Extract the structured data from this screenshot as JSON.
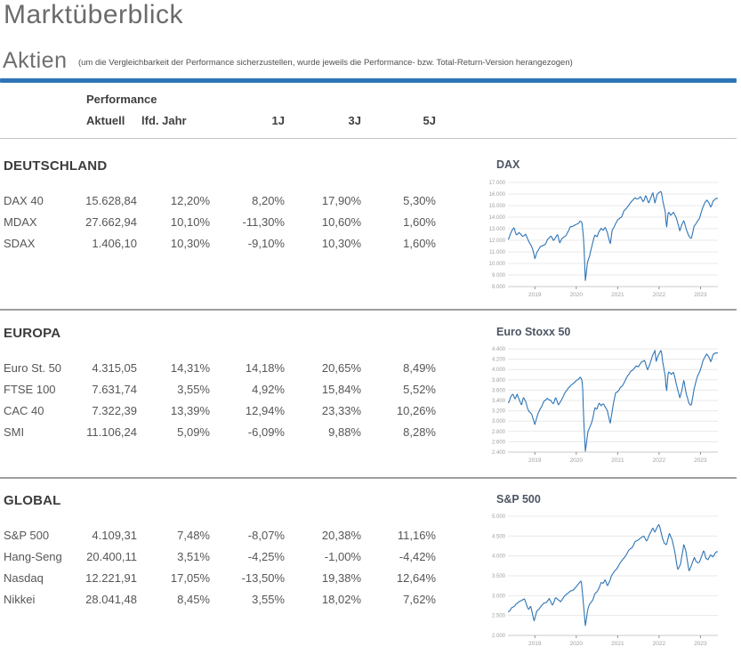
{
  "page": {
    "title": "Marktüberblick",
    "section_label": "Aktien",
    "section_note": "(um die Vergleichbarkeit der Performance sicherzustellen, wurde jeweils die Performance- bzw. Total-Return-Version herangezogen)"
  },
  "colors": {
    "accent_blue": "#2e75b6",
    "chart_line": "#2e75b6",
    "gridline": "#e8e8e8",
    "axis_label": "#a0a0a0",
    "separator": "#9e9e9e"
  },
  "table": {
    "group_header": "Performance",
    "columns": [
      "Aktuell",
      "lfd. Jahr",
      "1J",
      "3J",
      "5J"
    ],
    "sections": [
      {
        "title": "DEUTSCHLAND",
        "chart_title": "DAX",
        "rows": [
          {
            "label": "DAX 40",
            "values": [
              "15.628,84",
              "12,20%",
              "8,20%",
              "17,90%",
              "5,30%"
            ]
          },
          {
            "label": "MDAX",
            "values": [
              "27.662,94",
              "10,10%",
              "-11,30%",
              "10,60%",
              "1,60%"
            ]
          },
          {
            "label": "SDAX",
            "values": [
              "1.406,10",
              "10,30%",
              "-9,10%",
              "10,30%",
              "1,60%"
            ]
          }
        ]
      },
      {
        "title": "EUROPA",
        "chart_title": "Euro Stoxx 50",
        "rows": [
          {
            "label": "Euro St. 50",
            "values": [
              "4.315,05",
              "14,31%",
              "14,18%",
              "20,65%",
              "8,49%"
            ]
          },
          {
            "label": "FTSE 100",
            "values": [
              "7.631,74",
              "3,55%",
              "4,92%",
              "15,84%",
              "5,52%"
            ]
          },
          {
            "label": "CAC 40",
            "values": [
              "7.322,39",
              "13,39%",
              "12,94%",
              "23,33%",
              "10,26%"
            ]
          },
          {
            "label": "SMI",
            "values": [
              "11.106,24",
              "5,09%",
              "-6,09%",
              "9,88%",
              "8,28%"
            ]
          }
        ]
      },
      {
        "title": "GLOBAL",
        "chart_title": "S&P 500",
        "rows": [
          {
            "label": "S&P 500",
            "values": [
              "4.109,31",
              "7,48%",
              "-8,07%",
              "20,38%",
              "11,16%"
            ]
          },
          {
            "label": "Hang-Seng",
            "values": [
              "20.400,11",
              "3,51%",
              "-4,25%",
              "-1,00%",
              "-4,42%"
            ]
          },
          {
            "label": "Nasdaq",
            "values": [
              "12.221,91",
              "17,05%",
              "-13,50%",
              "19,38%",
              "12,64%"
            ]
          },
          {
            "label": "Nikkei",
            "values": [
              "28.041,48",
              "8,45%",
              "3,55%",
              "18,02%",
              "7,62%"
            ]
          }
        ]
      }
    ]
  },
  "chart_data": [
    {
      "type": "line",
      "title": "DAX",
      "x_ticks": [
        2019,
        2020,
        2021,
        2022,
        2023
      ],
      "xlim": [
        2018.35,
        2023.42
      ],
      "ylim": [
        8000,
        17000
      ],
      "y_step": 1000,
      "noise": 60,
      "seed": 7,
      "anchors": [
        [
          2018.37,
          12150
        ],
        [
          2018.45,
          12900
        ],
        [
          2018.5,
          13100
        ],
        [
          2018.55,
          12450
        ],
        [
          2018.62,
          12700
        ],
        [
          2018.7,
          12350
        ],
        [
          2018.78,
          12550
        ],
        [
          2018.85,
          11900
        ],
        [
          2018.95,
          11200
        ],
        [
          2019.0,
          10450
        ],
        [
          2019.05,
          11000
        ],
        [
          2019.15,
          11500
        ],
        [
          2019.25,
          11650
        ],
        [
          2019.3,
          12050
        ],
        [
          2019.4,
          12350
        ],
        [
          2019.45,
          11900
        ],
        [
          2019.55,
          12450
        ],
        [
          2019.6,
          11750
        ],
        [
          2019.65,
          12100
        ],
        [
          2019.75,
          12350
        ],
        [
          2019.85,
          13150
        ],
        [
          2019.95,
          13250
        ],
        [
          2020.05,
          13400
        ],
        [
          2020.1,
          13650
        ],
        [
          2020.14,
          13500
        ],
        [
          2020.18,
          12000
        ],
        [
          2020.22,
          8450
        ],
        [
          2020.27,
          10000
        ],
        [
          2020.32,
          10600
        ],
        [
          2020.4,
          11800
        ],
        [
          2020.45,
          12500
        ],
        [
          2020.5,
          12300
        ],
        [
          2020.55,
          12850
        ],
        [
          2020.6,
          13050
        ],
        [
          2020.65,
          12900
        ],
        [
          2020.7,
          13150
        ],
        [
          2020.75,
          12650
        ],
        [
          2020.82,
          11650
        ],
        [
          2020.87,
          12900
        ],
        [
          2020.93,
          13250
        ],
        [
          2021.0,
          13750
        ],
        [
          2021.05,
          13900
        ],
        [
          2021.1,
          14000
        ],
        [
          2021.15,
          14550
        ],
        [
          2021.22,
          14750
        ],
        [
          2021.3,
          15150
        ],
        [
          2021.35,
          15400
        ],
        [
          2021.42,
          15650
        ],
        [
          2021.5,
          15550
        ],
        [
          2021.55,
          15800
        ],
        [
          2021.62,
          15250
        ],
        [
          2021.68,
          15850
        ],
        [
          2021.75,
          15150
        ],
        [
          2021.8,
          15650
        ],
        [
          2021.85,
          16100
        ],
        [
          2021.9,
          15200
        ],
        [
          2021.95,
          15900
        ],
        [
          2022.0,
          16150
        ],
        [
          2022.05,
          16250
        ],
        [
          2022.1,
          15200
        ],
        [
          2022.15,
          14450
        ],
        [
          2022.18,
          12950
        ],
        [
          2022.22,
          14400
        ],
        [
          2022.28,
          14150
        ],
        [
          2022.35,
          14450
        ],
        [
          2022.42,
          13900
        ],
        [
          2022.5,
          12850
        ],
        [
          2022.55,
          13350
        ],
        [
          2022.6,
          13750
        ],
        [
          2022.65,
          13050
        ],
        [
          2022.72,
          12350
        ],
        [
          2022.78,
          12150
        ],
        [
          2022.85,
          13250
        ],
        [
          2022.92,
          13600
        ],
        [
          2022.98,
          13950
        ],
        [
          2023.05,
          14800
        ],
        [
          2023.1,
          15250
        ],
        [
          2023.15,
          15500
        ],
        [
          2023.2,
          15250
        ],
        [
          2023.25,
          14850
        ],
        [
          2023.3,
          15350
        ],
        [
          2023.37,
          15630
        ]
      ]
    },
    {
      "type": "line",
      "title": "Euro Stoxx 50",
      "x_ticks": [
        2019,
        2020,
        2021,
        2022,
        2023
      ],
      "xlim": [
        2018.35,
        2023.42
      ],
      "ylim": [
        2400,
        4400
      ],
      "y_step": 200,
      "noise": 16,
      "seed": 13,
      "anchors": [
        [
          2018.37,
          3360
        ],
        [
          2018.42,
          3500
        ],
        [
          2018.47,
          3550
        ],
        [
          2018.52,
          3420
        ],
        [
          2018.57,
          3530
        ],
        [
          2018.63,
          3400
        ],
        [
          2018.68,
          3310
        ],
        [
          2018.72,
          3470
        ],
        [
          2018.78,
          3390
        ],
        [
          2018.85,
          3200
        ],
        [
          2018.92,
          3150
        ],
        [
          2019.0,
          2950
        ],
        [
          2019.07,
          3150
        ],
        [
          2019.15,
          3280
        ],
        [
          2019.22,
          3380
        ],
        [
          2019.3,
          3450
        ],
        [
          2019.38,
          3400
        ],
        [
          2019.45,
          3320
        ],
        [
          2019.5,
          3450
        ],
        [
          2019.57,
          3300
        ],
        [
          2019.65,
          3420
        ],
        [
          2019.72,
          3550
        ],
        [
          2019.8,
          3620
        ],
        [
          2019.87,
          3700
        ],
        [
          2019.95,
          3750
        ],
        [
          2020.02,
          3790
        ],
        [
          2020.1,
          3860
        ],
        [
          2020.15,
          3750
        ],
        [
          2020.18,
          3000
        ],
        [
          2020.22,
          2400
        ],
        [
          2020.28,
          2800
        ],
        [
          2020.33,
          2900
        ],
        [
          2020.4,
          3050
        ],
        [
          2020.45,
          3250
        ],
        [
          2020.5,
          3230
        ],
        [
          2020.55,
          3350
        ],
        [
          2020.6,
          3300
        ],
        [
          2020.65,
          3330
        ],
        [
          2020.7,
          3270
        ],
        [
          2020.75,
          3200
        ],
        [
          2020.82,
          2950
        ],
        [
          2020.88,
          3250
        ],
        [
          2020.95,
          3550
        ],
        [
          2021.0,
          3570
        ],
        [
          2021.07,
          3650
        ],
        [
          2021.15,
          3720
        ],
        [
          2021.22,
          3850
        ],
        [
          2021.3,
          3950
        ],
        [
          2021.38,
          4000
        ],
        [
          2021.45,
          4080
        ],
        [
          2021.5,
          4050
        ],
        [
          2021.57,
          4130
        ],
        [
          2021.65,
          4180
        ],
        [
          2021.72,
          4000
        ],
        [
          2021.78,
          4120
        ],
        [
          2021.85,
          4300
        ],
        [
          2021.9,
          4380
        ],
        [
          2021.93,
          4150
        ],
        [
          2022.0,
          4300
        ],
        [
          2022.05,
          4390
        ],
        [
          2022.1,
          4100
        ],
        [
          2022.15,
          3850
        ],
        [
          2022.18,
          3550
        ],
        [
          2022.22,
          3950
        ],
        [
          2022.3,
          3900
        ],
        [
          2022.35,
          3950
        ],
        [
          2022.42,
          3700
        ],
        [
          2022.5,
          3450
        ],
        [
          2022.55,
          3600
        ],
        [
          2022.6,
          3800
        ],
        [
          2022.65,
          3550
        ],
        [
          2022.72,
          3350
        ],
        [
          2022.78,
          3300
        ],
        [
          2022.85,
          3650
        ],
        [
          2022.92,
          3850
        ],
        [
          2022.98,
          3950
        ],
        [
          2023.05,
          4150
        ],
        [
          2023.1,
          4250
        ],
        [
          2023.15,
          4300
        ],
        [
          2023.2,
          4250
        ],
        [
          2023.25,
          4150
        ],
        [
          2023.3,
          4280
        ],
        [
          2023.37,
          4315
        ]
      ]
    },
    {
      "type": "line",
      "title": "S&P 500",
      "x_ticks": [
        2019,
        2020,
        2021,
        2022,
        2023
      ],
      "xlim": [
        2018.35,
        2023.42
      ],
      "ylim": [
        2000,
        5000
      ],
      "y_step": 500,
      "noise": 20,
      "seed": 21,
      "anchors": [
        [
          2018.37,
          2600
        ],
        [
          2018.45,
          2700
        ],
        [
          2018.5,
          2720
        ],
        [
          2018.55,
          2800
        ],
        [
          2018.62,
          2850
        ],
        [
          2018.7,
          2900
        ],
        [
          2018.75,
          2930
        ],
        [
          2018.8,
          2750
        ],
        [
          2018.85,
          2650
        ],
        [
          2018.9,
          2750
        ],
        [
          2018.98,
          2350
        ],
        [
          2019.05,
          2600
        ],
        [
          2019.12,
          2700
        ],
        [
          2019.2,
          2800
        ],
        [
          2019.28,
          2850
        ],
        [
          2019.35,
          2930
        ],
        [
          2019.42,
          2750
        ],
        [
          2019.5,
          2950
        ],
        [
          2019.57,
          2900
        ],
        [
          2019.62,
          2850
        ],
        [
          2019.7,
          2980
        ],
        [
          2019.78,
          3050
        ],
        [
          2019.85,
          3100
        ],
        [
          2019.93,
          3150
        ],
        [
          2020.0,
          3230
        ],
        [
          2020.08,
          3330
        ],
        [
          2020.12,
          3380
        ],
        [
          2020.16,
          2950
        ],
        [
          2020.22,
          2230
        ],
        [
          2020.28,
          2650
        ],
        [
          2020.33,
          2800
        ],
        [
          2020.4,
          2900
        ],
        [
          2020.45,
          3050
        ],
        [
          2020.5,
          3100
        ],
        [
          2020.55,
          3200
        ],
        [
          2020.6,
          3350
        ],
        [
          2020.65,
          3300
        ],
        [
          2020.7,
          3400
        ],
        [
          2020.75,
          3250
        ],
        [
          2020.8,
          3350
        ],
        [
          2020.85,
          3500
        ],
        [
          2020.92,
          3600
        ],
        [
          2021.0,
          3700
        ],
        [
          2021.05,
          3800
        ],
        [
          2021.12,
          3900
        ],
        [
          2021.2,
          4000
        ],
        [
          2021.28,
          4150
        ],
        [
          2021.35,
          4200
        ],
        [
          2021.42,
          4350
        ],
        [
          2021.5,
          4400
        ],
        [
          2021.57,
          4450
        ],
        [
          2021.63,
          4500
        ],
        [
          2021.7,
          4350
        ],
        [
          2021.77,
          4550
        ],
        [
          2021.85,
          4700
        ],
        [
          2021.9,
          4600
        ],
        [
          2021.97,
          4750
        ],
        [
          2022.0,
          4800
        ],
        [
          2022.07,
          4500
        ],
        [
          2022.12,
          4350
        ],
        [
          2022.18,
          4300
        ],
        [
          2022.25,
          4600
        ],
        [
          2022.32,
          4400
        ],
        [
          2022.38,
          4100
        ],
        [
          2022.45,
          3650
        ],
        [
          2022.52,
          3800
        ],
        [
          2022.6,
          4300
        ],
        [
          2022.65,
          4100
        ],
        [
          2022.72,
          3600
        ],
        [
          2022.78,
          3750
        ],
        [
          2022.85,
          3950
        ],
        [
          2022.9,
          3850
        ],
        [
          2022.97,
          3850
        ],
        [
          2023.03,
          4000
        ],
        [
          2023.08,
          4150
        ],
        [
          2023.13,
          3950
        ],
        [
          2023.18,
          3900
        ],
        [
          2023.25,
          4050
        ],
        [
          2023.3,
          3980
        ],
        [
          2023.37,
          4110
        ]
      ]
    }
  ]
}
